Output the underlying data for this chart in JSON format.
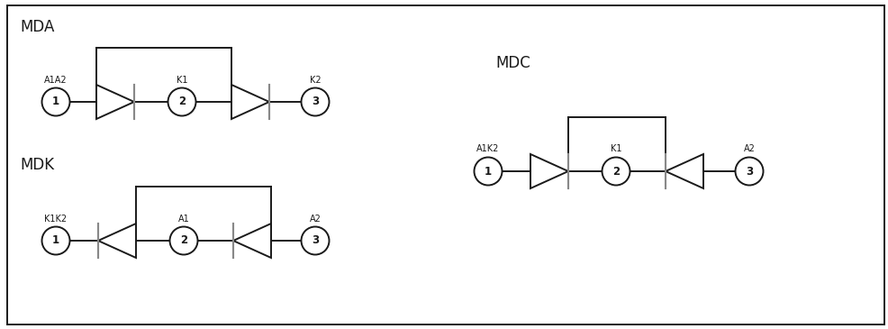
{
  "bg_color": "#ffffff",
  "line_color": "#1a1a1a",
  "bar_color": "#888888",
  "title_MDA": "MDA",
  "title_MDK": "MDK",
  "title_MDC": "MDC",
  "lw": 1.4,
  "circle_r": 0.155,
  "diode_hw": 0.21,
  "diode_hh": 0.19
}
